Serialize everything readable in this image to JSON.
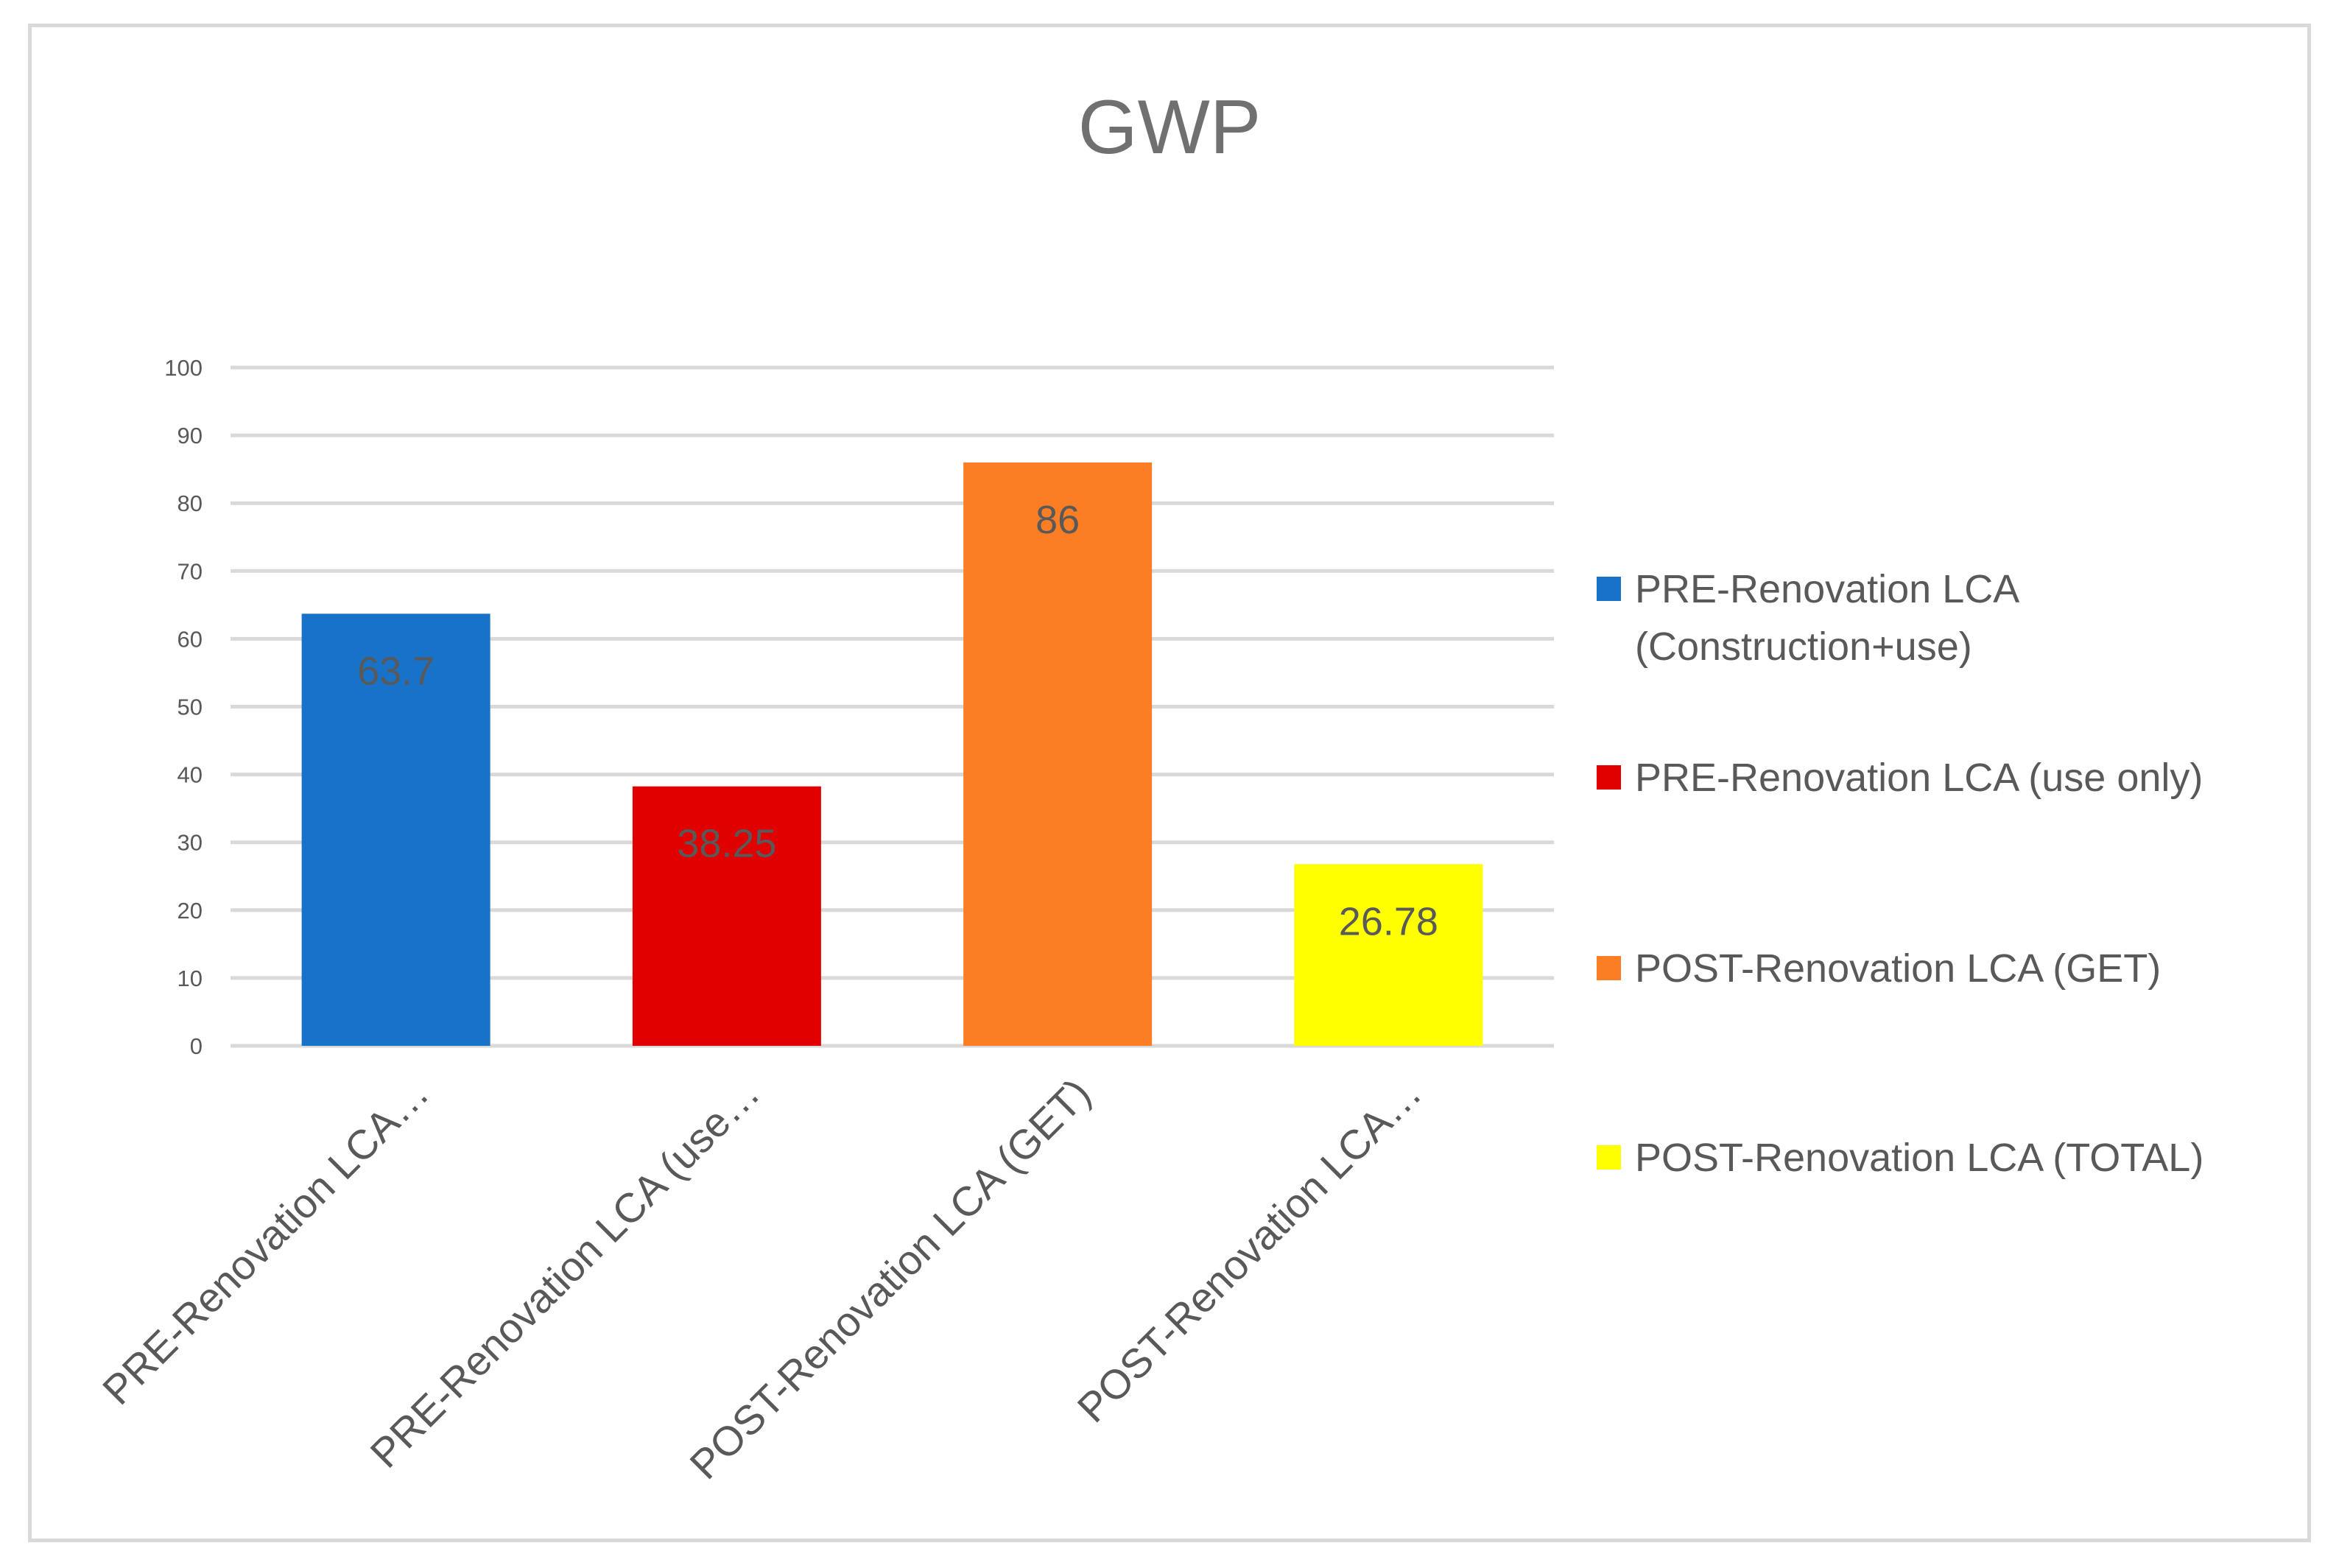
{
  "chart_data": {
    "type": "bar",
    "title": "GWP",
    "xlabel": "",
    "ylabel": "",
    "ylim": [
      0,
      100
    ],
    "yticks": [
      0,
      10,
      20,
      30,
      40,
      50,
      60,
      70,
      80,
      90,
      100
    ],
    "grid": true,
    "legend_position": "right",
    "categories": [
      "PRE-Renovation LCA…",
      "PRE-Renovation LCA (use…",
      "POST-Renovation LCA (GET)",
      "POST-Renovation LCA…"
    ],
    "values": [
      63.7,
      38.25,
      86,
      26.78
    ],
    "data_labels": [
      "63.7",
      "38.25",
      "86",
      "26.78"
    ],
    "colors": [
      "#1873c8",
      "#e00000",
      "#fb7e25",
      "#ffff00"
    ],
    "legend": [
      {
        "lines": [
          "PRE-Renovation LCA",
          "(Construction+use)"
        ],
        "color": "#1873c8"
      },
      {
        "lines": [
          "PRE-Renovation LCA (use only)"
        ],
        "color": "#e00000"
      },
      {
        "lines": [
          "POST-Renovation LCA (GET)"
        ],
        "color": "#fb7e25"
      },
      {
        "lines": [
          "POST-Renovation LCA (TOTAL)"
        ],
        "color": "#ffff00"
      }
    ],
    "gridline_color": "#d9d9d9",
    "text_color": "#595959"
  }
}
